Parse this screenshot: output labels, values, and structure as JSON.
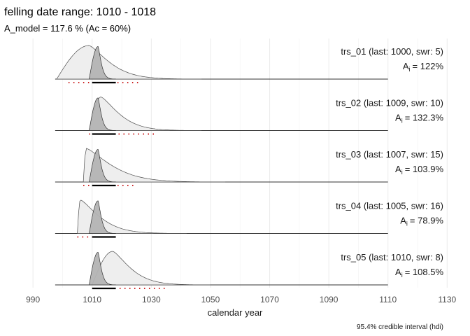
{
  "chart_data": {
    "type": "area",
    "title": "felling date range: 1010 - 1018",
    "subtitle": "A_model =  117.6 % (Ac = 60%)",
    "xlabel": "calendar year",
    "caption": "95.4% credible interval (hdi)",
    "xlim": [
      985,
      1133
    ],
    "x_ticks": [
      990,
      1010,
      1030,
      1050,
      1070,
      1090,
      1110,
      1130
    ],
    "felling_range": [
      1010,
      1018
    ],
    "model_density": {
      "start": 1009,
      "mode": 1012,
      "end": 1018
    },
    "colors": {
      "model_fill": "#b3b3b3",
      "series_fill": "#eeeeee",
      "outline": "#4d4d4d",
      "hdi_dots": "#cc2222",
      "grid": "#ebebeb"
    },
    "series": [
      {
        "name": "trs_01 (last: 1000, swr: 5)",
        "agreement_label": "A",
        "agreement_sub": "i",
        "agreement_value": "= 122%",
        "density": {
          "start": 998,
          "mode": 1009,
          "end": 1047
        },
        "hdi": [
          1002,
          1026
        ]
      },
      {
        "name": "trs_02 (last: 1009, swr: 10)",
        "agreement_label": "A",
        "agreement_sub": "i",
        "agreement_value": "= 132.3%",
        "density": {
          "start": 1009,
          "mode": 1013,
          "end": 1047
        },
        "hdi": [
          1009,
          1032
        ]
      },
      {
        "name": "trs_03 (last: 1007, swr: 15)",
        "agreement_label": "A",
        "agreement_sub": "i",
        "agreement_value": "= 103.9%",
        "density": {
          "start": 1007,
          "mode": 1008,
          "end": 1055
        },
        "hdi": [
          1007,
          1024
        ]
      },
      {
        "name": "trs_04 (last: 1005, swr: 16)",
        "agreement_label": "A",
        "agreement_sub": "i",
        "agreement_value": "= 78.9%",
        "density": {
          "start": 1005,
          "mode": 1006,
          "end": 1042
        },
        "hdi": [
          1005,
          1018
        ]
      },
      {
        "name": "trs_05 (last: 1010, swr: 8)",
        "agreement_label": "A",
        "agreement_sub": "i",
        "agreement_value": "= 108.5%",
        "density": {
          "start": 1010,
          "mode": 1017,
          "end": 1050
        },
        "hdi": [
          1011,
          1035
        ]
      }
    ]
  }
}
